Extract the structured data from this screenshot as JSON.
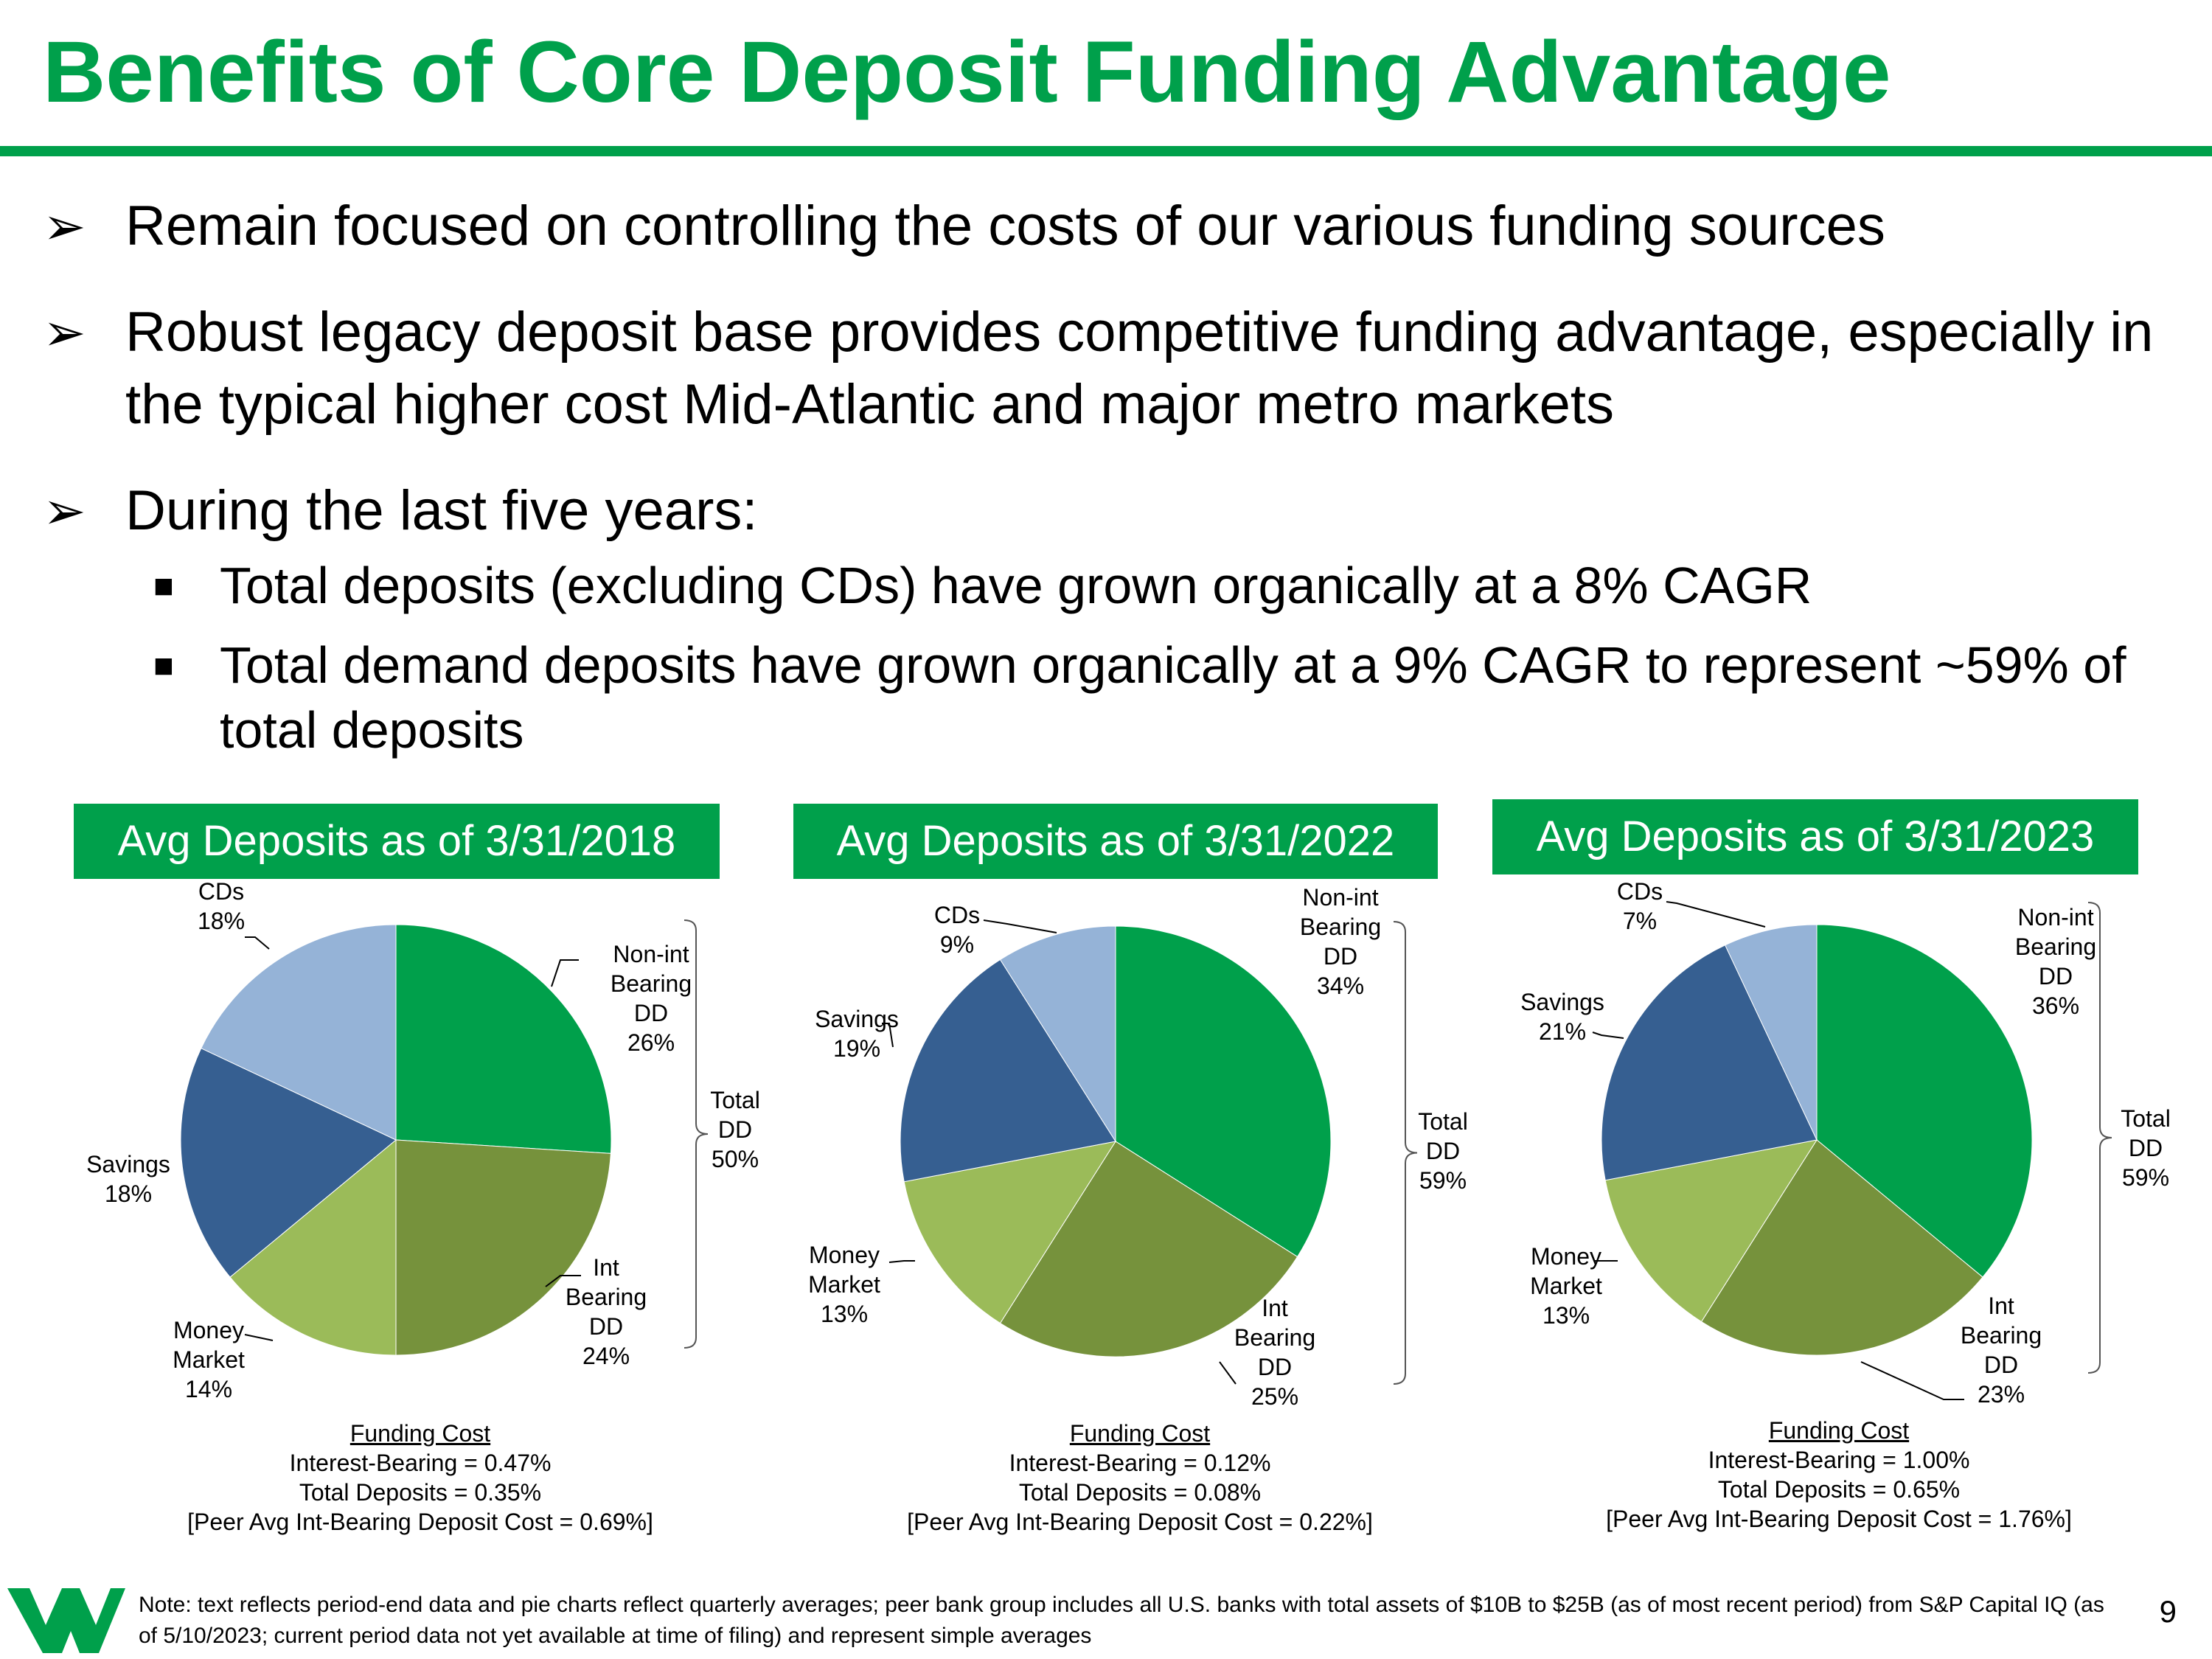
{
  "title": "Benefits of Core Deposit Funding Advantage",
  "bullets": [
    {
      "text": "Remain focused on controlling the costs of our various funding sources"
    },
    {
      "text": "Robust legacy deposit base provides competitive funding advantage, especially in the typical higher cost Mid-Atlantic and major metro markets"
    },
    {
      "text": "During the last five years:",
      "sub": [
        "Total deposits (excluding CDs) have grown organically at a 8% CAGR",
        "Total demand deposits have grown organically at a 9% CAGR to represent ~59% of total deposits"
      ]
    }
  ],
  "chart_data": [
    {
      "type": "pie",
      "title": "Avg Deposits as of 3/31/2018",
      "slices": [
        {
          "name": "Non-int Bearing DD",
          "label_lines": [
            "Non-int",
            "Bearing",
            "DD",
            "26%"
          ],
          "value": 26,
          "color": "#00A04B"
        },
        {
          "name": "Int Bearing DD",
          "label_lines": [
            "Int",
            "Bearing",
            "DD",
            "24%"
          ],
          "value": 24,
          "color": "#76923C"
        },
        {
          "name": "Money Market",
          "label_lines": [
            "Money",
            "Market",
            "14%"
          ],
          "value": 14,
          "color": "#9BBB59"
        },
        {
          "name": "Savings",
          "label_lines": [
            "Savings",
            "18%"
          ],
          "value": 18,
          "color": "#365F91"
        },
        {
          "name": "CDs",
          "label_lines": [
            "CDs",
            "18%"
          ],
          "value": 18,
          "color": "#95B3D7"
        }
      ],
      "bracket_label": [
        "Total",
        "DD",
        "50%"
      ],
      "funding": {
        "title": "Funding Cost",
        "lines": [
          "Interest-Bearing = 0.47%",
          "Total Deposits = 0.35%",
          "[Peer Avg Int-Bearing Deposit Cost = 0.69%]"
        ]
      }
    },
    {
      "type": "pie",
      "title": "Avg Deposits as of 3/31/2022",
      "slices": [
        {
          "name": "Non-int Bearing DD",
          "label_lines": [
            "Non-int",
            "Bearing",
            "DD",
            "34%"
          ],
          "value": 34,
          "color": "#00A04B"
        },
        {
          "name": "Int Bearing DD",
          "label_lines": [
            "Int",
            "Bearing",
            "DD",
            "25%"
          ],
          "value": 25,
          "color": "#76923C"
        },
        {
          "name": "Money Market",
          "label_lines": [
            "Money",
            "Market",
            "13%"
          ],
          "value": 13,
          "color": "#9BBB59"
        },
        {
          "name": "Savings",
          "label_lines": [
            "Savings",
            "19%"
          ],
          "value": 19,
          "color": "#365F91"
        },
        {
          "name": "CDs",
          "label_lines": [
            "CDs",
            "9%"
          ],
          "value": 9,
          "color": "#95B3D7"
        }
      ],
      "bracket_label": [
        "Total",
        "DD",
        "59%"
      ],
      "funding": {
        "title": "Funding Cost",
        "lines": [
          "Interest-Bearing = 0.12%",
          "Total Deposits = 0.08%",
          "[Peer Avg Int-Bearing Deposit Cost = 0.22%]"
        ]
      }
    },
    {
      "type": "pie",
      "title": "Avg Deposits as of 3/31/2023",
      "slices": [
        {
          "name": "Non-int Bearing DD",
          "label_lines": [
            "Non-int",
            "Bearing",
            "DD",
            "36%"
          ],
          "value": 36,
          "color": "#00A04B"
        },
        {
          "name": "Int Bearing DD",
          "label_lines": [
            "Int",
            "Bearing",
            "DD",
            "23%"
          ],
          "value": 23,
          "color": "#76923C"
        },
        {
          "name": "Money Market",
          "label_lines": [
            "Money",
            "Market",
            "13%"
          ],
          "value": 13,
          "color": "#9BBB59"
        },
        {
          "name": "Savings",
          "label_lines": [
            "Savings",
            "21%"
          ],
          "value": 21,
          "color": "#365F91"
        },
        {
          "name": "CDs",
          "label_lines": [
            "CDs",
            "7%"
          ],
          "value": 7,
          "color": "#95B3D7"
        }
      ],
      "bracket_label": [
        "Total",
        "DD",
        "59%"
      ],
      "funding": {
        "title": "Funding Cost",
        "lines": [
          "Interest-Bearing = 1.00%",
          "Total Deposits = 0.65%",
          "[Peer Avg Int-Bearing Deposit Cost = 1.76%]"
        ]
      }
    }
  ],
  "note": "Note: text reflects period-end data and pie charts reflect quarterly averages; peer bank group includes all U.S. banks with total assets of $10B to $25B (as of most recent period) from S&P Capital IQ (as of 5/10/2023; current period data not yet available at time of filing) and represent simple averages",
  "page_number": "9",
  "logo_icon": "webster-w-logo-icon",
  "colors": {
    "brand_green": "#00A04B"
  }
}
